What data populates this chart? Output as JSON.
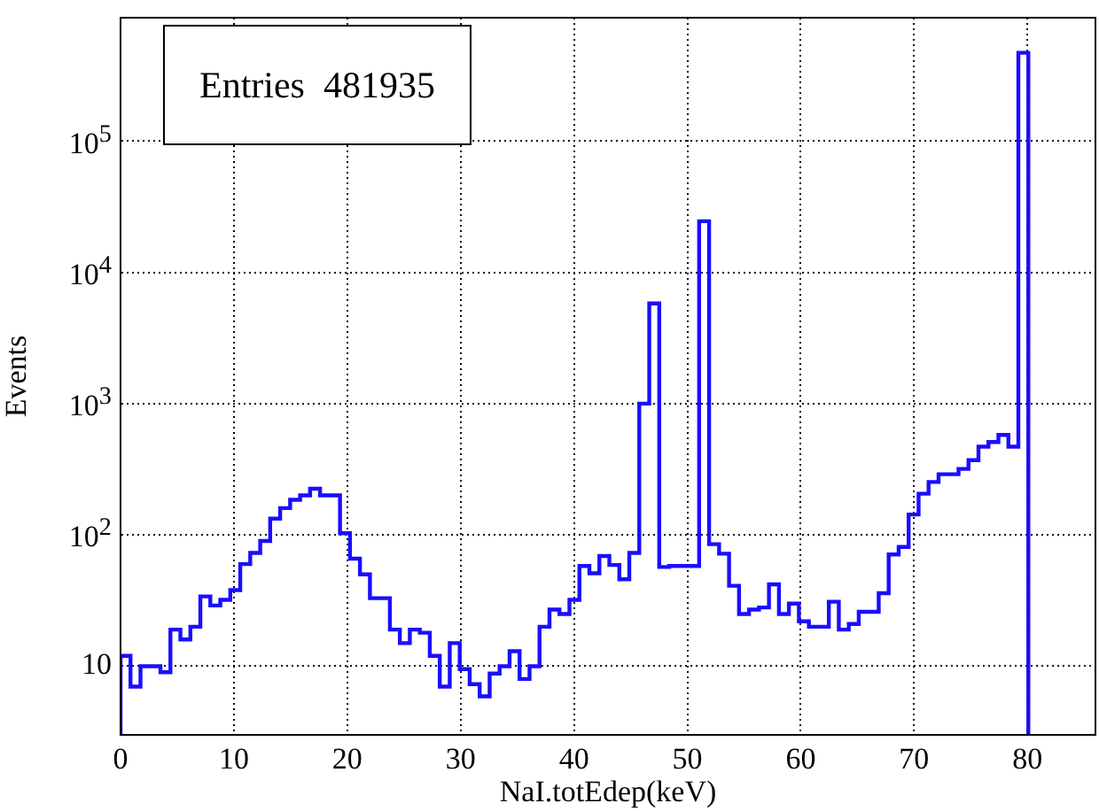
{
  "chart_data": {
    "type": "histogram",
    "xlabel": "NaI.totEdep(keV)",
    "ylabel": "Events",
    "annotations": [
      "Entries  481935"
    ],
    "color": "#1a0dff",
    "log": "y",
    "grid": true,
    "legend": false,
    "xlim": [
      0,
      86
    ],
    "xticks": [
      0,
      10,
      20,
      30,
      40,
      50,
      60,
      70,
      80
    ],
    "ylim": [
      3,
      870000
    ],
    "yticks": [
      10,
      {
        "value": 100,
        "label": "10$^{2}$"
      },
      {
        "value": 1000,
        "label": "10$^{3}$"
      },
      {
        "value": 10000,
        "label": "10$^{4}$"
      },
      {
        "value": 100000,
        "label": "10$^{5}$"
      }
    ],
    "bins": [
      0,
      0.88,
      1.76,
      2.64,
      3.52,
      4.4,
      5.28,
      6.16,
      7.04,
      7.92,
      8.8,
      9.68,
      10.56,
      11.44,
      12.32,
      13.2,
      14.08,
      14.96,
      15.84,
      16.72,
      17.6,
      18.48,
      19.36,
      20.24,
      21.12,
      22,
      22.88,
      23.76,
      24.64,
      25.52,
      26.4,
      27.28,
      28.16,
      29.04,
      29.92,
      30.8,
      31.68,
      32.56,
      33.44,
      34.32,
      35.2,
      36.08,
      36.96,
      37.84,
      38.72,
      39.6,
      40.48,
      41.36,
      42.24,
      43.12,
      44,
      44.88,
      45.76,
      46.64,
      47.52,
      48.4,
      49.28,
      50.16,
      51.04,
      51.92,
      52.8,
      53.68,
      54.56,
      55.44,
      56.32,
      57.2,
      58.08,
      58.96,
      59.84,
      60.72,
      61.6,
      62.48,
      63.36,
      64.24,
      65.12,
      66,
      66.88,
      67.76,
      68.64,
      69.52,
      70.4,
      71.28,
      72.16,
      73.04,
      73.92,
      74.8,
      75.68,
      76.56,
      77.44,
      78.32,
      79.2,
      80.08
    ],
    "values": [
      12,
      7,
      10,
      10,
      9,
      19,
      16,
      20,
      34,
      29,
      32,
      38,
      60,
      73,
      90,
      133,
      160,
      185,
      200,
      225,
      200,
      200,
      103,
      66,
      50,
      33,
      33,
      19,
      15,
      19,
      18,
      12,
      7,
      15,
      9.5,
      7.3,
      5.9,
      8.8,
      10,
      13,
      8,
      10,
      20,
      27,
      25,
      32,
      58,
      51,
      69,
      59,
      46,
      73,
      1000,
      5800,
      57,
      58,
      58,
      58,
      24500,
      85,
      72,
      41,
      25,
      27,
      28,
      42,
      25,
      30,
      22,
      20,
      20,
      31,
      19,
      21,
      26,
      26,
      36,
      71,
      81,
      143,
      206,
      253,
      290,
      290,
      318,
      371,
      470,
      510,
      577,
      470,
      470000
    ]
  }
}
